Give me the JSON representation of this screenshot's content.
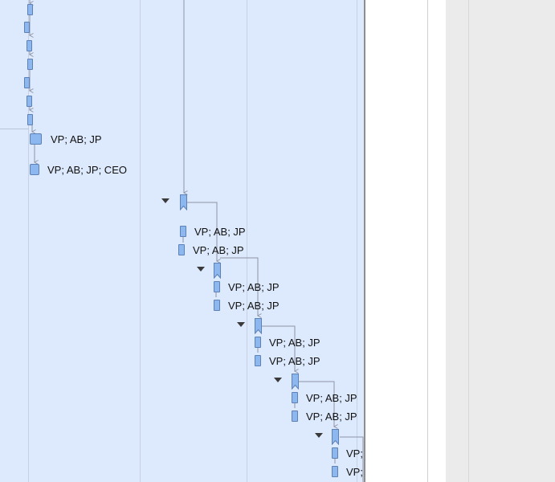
{
  "gantt": {
    "task_labels": [
      "VP; AB; JP",
      "VP; AB; JP; CEO",
      "VP; AB; JP",
      "VP; AB; JP",
      "VP; AB; JP",
      "VP; AB; JP",
      "VP; AB; JP",
      "VP; AB; JP",
      "VP; AB; JP",
      "VP; AB; JP",
      "VP; AB; JP",
      "VP; AB; JP"
    ],
    "colors": {
      "chart_background": "#dde9fc",
      "task_fill": "#8db7ef",
      "task_border": "#5d81b6",
      "connector": "#8e95a6",
      "toggle": "#3a3a3a",
      "side_panel": "#ebebeb"
    },
    "icons": {
      "collapse": "triangle-down-icon",
      "arrow": "arrow-down-icon"
    }
  }
}
